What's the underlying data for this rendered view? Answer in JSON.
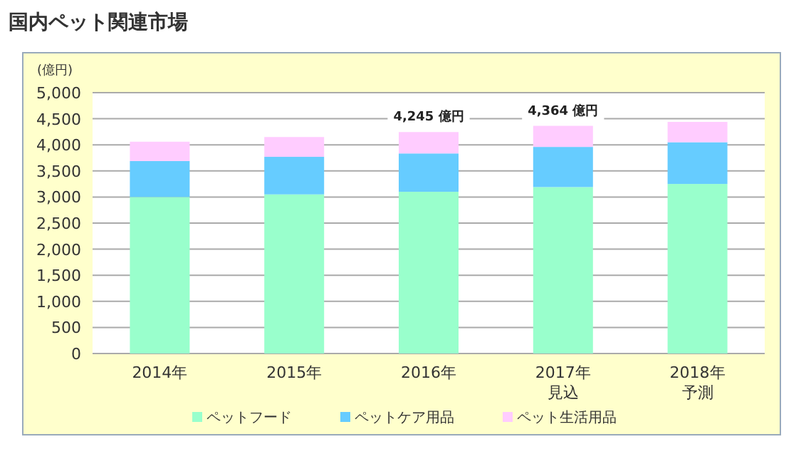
{
  "chart_data": {
    "type": "bar",
    "stacked": true,
    "title": "国内ペット関連市場",
    "ylabel": "(億円)",
    "categories": [
      "2014年",
      "2015年",
      "2016年",
      "2017年見込",
      "2018年予測"
    ],
    "series": [
      {
        "name": "ペットフード",
        "color": "#99ffcc",
        "values": [
          3000,
          3050,
          3100,
          3190,
          3250
        ]
      },
      {
        "name": "ペットケア用品",
        "color": "#66ccff",
        "values": [
          690,
          720,
          735,
          770,
          800
        ]
      },
      {
        "name": "ペット生活用品",
        "color": "#ffccff",
        "values": [
          370,
          380,
          410,
          404,
          390
        ]
      }
    ],
    "ylim": [
      0,
      5000
    ],
    "yticks": [
      {
        "value": 0,
        "label": "0"
      },
      {
        "value": 500,
        "label": "500"
      },
      {
        "value": 1000,
        "label": "1,000"
      },
      {
        "value": 1500,
        "label": "1,500"
      },
      {
        "value": 2000,
        "label": "2,000"
      },
      {
        "value": 2500,
        "label": "2,500"
      },
      {
        "value": 3000,
        "label": "3,000"
      },
      {
        "value": 3500,
        "label": "3,500"
      },
      {
        "value": 4000,
        "label": "4,000"
      },
      {
        "value": 4500,
        "label": "4,500"
      },
      {
        "value": 5000,
        "label": "5,000"
      }
    ],
    "grid": "y",
    "legend": "bottom",
    "totals": [
      null,
      null,
      "4,245 億円",
      "4,364 億円",
      null
    ]
  }
}
